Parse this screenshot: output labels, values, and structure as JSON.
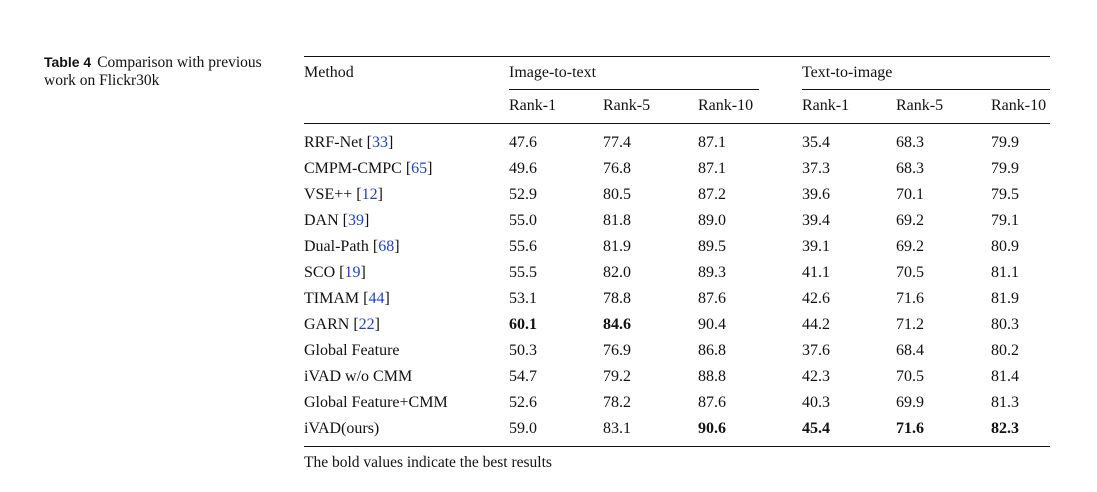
{
  "caption": {
    "label": "Table 4",
    "text": "Comparison with previous work on Flickr30k"
  },
  "table": {
    "method_header": "Method",
    "groups": [
      "Image-to-text",
      "Text-to-image"
    ],
    "subheaders": [
      "Rank-1",
      "Rank-5",
      "Rank-10",
      "Rank-1",
      "Rank-5",
      "Rank-10"
    ],
    "rows": [
      {
        "name": "RRF-Net",
        "ref": "33",
        "values": [
          "47.6",
          "77.4",
          "87.1",
          "35.4",
          "68.3",
          "79.9"
        ],
        "bold": []
      },
      {
        "name": "CMPM-CMPC",
        "ref": "65",
        "values": [
          "49.6",
          "76.8",
          "87.1",
          "37.3",
          "68.3",
          "79.9"
        ],
        "bold": []
      },
      {
        "name": "VSE++",
        "ref": "12",
        "values": [
          "52.9",
          "80.5",
          "87.2",
          "39.6",
          "70.1",
          "79.5"
        ],
        "bold": []
      },
      {
        "name": "DAN",
        "ref": "39",
        "values": [
          "55.0",
          "81.8",
          "89.0",
          "39.4",
          "69.2",
          "79.1"
        ],
        "bold": []
      },
      {
        "name": "Dual-Path",
        "ref": "68",
        "values": [
          "55.6",
          "81.9",
          "89.5",
          "39.1",
          "69.2",
          "80.9"
        ],
        "bold": []
      },
      {
        "name": "SCO",
        "ref": "19",
        "values": [
          "55.5",
          "82.0",
          "89.3",
          "41.1",
          "70.5",
          "81.1"
        ],
        "bold": []
      },
      {
        "name": "TIMAM",
        "ref": "44",
        "values": [
          "53.1",
          "78.8",
          "87.6",
          "42.6",
          "71.6",
          "81.9"
        ],
        "bold": []
      },
      {
        "name": "GARN",
        "ref": "22",
        "values": [
          "60.1",
          "84.6",
          "90.4",
          "44.2",
          "71.2",
          "80.3"
        ],
        "bold": [
          0,
          1
        ]
      },
      {
        "name": "Global Feature",
        "ref": "",
        "values": [
          "50.3",
          "76.9",
          "86.8",
          "37.6",
          "68.4",
          "80.2"
        ],
        "bold": []
      },
      {
        "name": "iVAD w/o CMM",
        "ref": "",
        "values": [
          "54.7",
          "79.2",
          "88.8",
          "42.3",
          "70.5",
          "81.4"
        ],
        "bold": []
      },
      {
        "name": "Global Feature+CMM",
        "ref": "",
        "values": [
          "52.6",
          "78.2",
          "87.6",
          "40.3",
          "69.9",
          "81.3"
        ],
        "bold": []
      },
      {
        "name": "iVAD(ours)",
        "ref": "",
        "values": [
          "59.0",
          "83.1",
          "90.6",
          "45.4",
          "71.6",
          "82.3"
        ],
        "bold": [
          2,
          3,
          4,
          5
        ]
      }
    ]
  },
  "footnote": "The bold values indicate the best results"
}
